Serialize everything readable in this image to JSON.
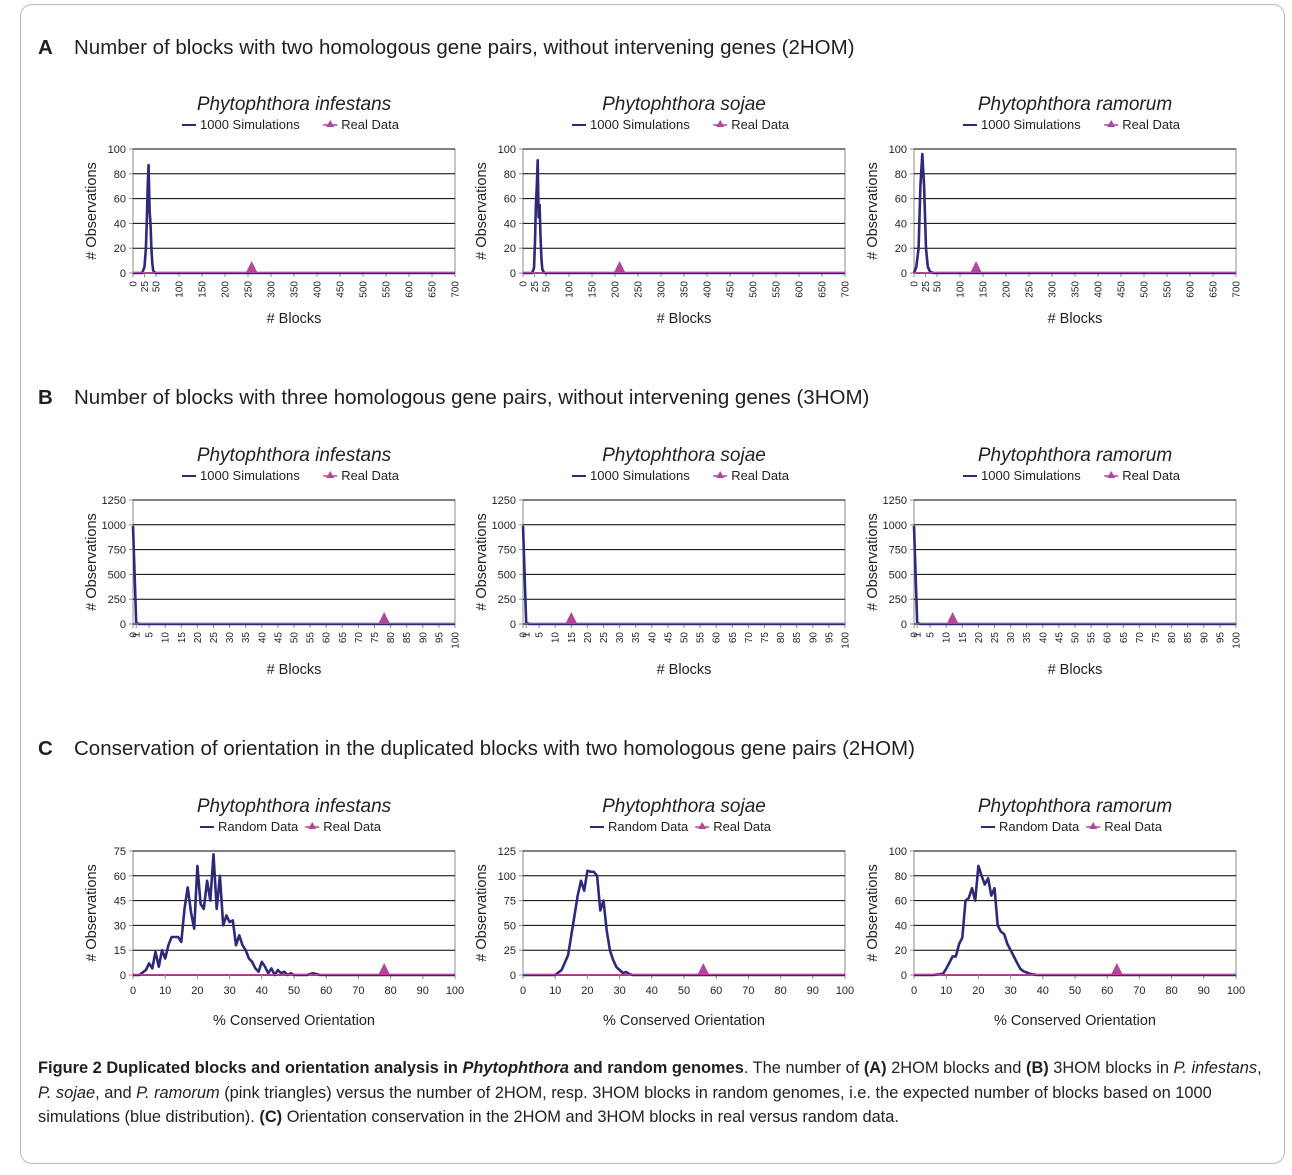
{
  "sections": [
    {
      "letter": "A",
      "text": "Number of blocks with two homologous gene pairs, without intervening genes (2HOM)"
    },
    {
      "letter": "B",
      "text": "Number of blocks with three homologous gene pairs, without intervening genes (3HOM)"
    },
    {
      "letter": "C",
      "text": "Conservation of orientation in the duplicated blocks with two homologous gene pairs (2HOM)"
    }
  ],
  "colors": {
    "series": "#2e2a7a",
    "real": "#b0479a",
    "grid": "#000000",
    "axis": "#8c8c8c"
  },
  "chart_data": [
    {
      "id": "A1",
      "type": "line",
      "title": "Phytophthora infestans",
      "legend": [
        "1000 Simulations",
        "Real Data"
      ],
      "xlabel": "# Blocks",
      "ylabel": "# Observations",
      "xlim": [
        0,
        700
      ],
      "ylim": [
        0,
        100
      ],
      "yticks": [
        0,
        20,
        40,
        60,
        80,
        100
      ],
      "xticks": [
        0,
        25,
        50,
        100,
        150,
        200,
        250,
        300,
        350,
        400,
        450,
        500,
        550,
        600,
        650,
        700
      ],
      "xtick_rotate": true,
      "series": {
        "x": [
          0,
          20,
          25,
          28,
          30,
          32,
          34,
          36,
          38,
          40,
          42,
          44,
          48,
          55,
          700
        ],
        "y": [
          0,
          0,
          5,
          20,
          42,
          70,
          87,
          50,
          40,
          20,
          8,
          2,
          0,
          0,
          0
        ]
      },
      "real": {
        "x": 258,
        "y": 6
      }
    },
    {
      "id": "A2",
      "type": "line",
      "title": "Phytophthora sojae",
      "legend": [
        "1000 Simulations",
        "Real Data"
      ],
      "xlabel": "# Blocks",
      "ylabel": "# Observations",
      "xlim": [
        0,
        700
      ],
      "ylim": [
        0,
        100
      ],
      "yticks": [
        0,
        20,
        40,
        60,
        80,
        100
      ],
      "xticks": [
        0,
        25,
        50,
        100,
        150,
        200,
        250,
        300,
        350,
        400,
        450,
        500,
        550,
        600,
        650,
        700
      ],
      "xtick_rotate": true,
      "series": {
        "x": [
          0,
          20,
          24,
          26,
          28,
          30,
          32,
          34,
          36,
          38,
          40,
          42,
          46,
          55,
          700
        ],
        "y": [
          0,
          0,
          4,
          25,
          55,
          70,
          91,
          45,
          55,
          30,
          12,
          3,
          0,
          0,
          0
        ]
      },
      "real": {
        "x": 210,
        "y": 6
      }
    },
    {
      "id": "A3",
      "type": "line",
      "title": "Phytophthora ramorum",
      "legend": [
        "1000 Simulations",
        "Real Data"
      ],
      "xlabel": "# Blocks",
      "ylabel": "# Observations",
      "xlim": [
        0,
        700
      ],
      "ylim": [
        0,
        100
      ],
      "yticks": [
        0,
        20,
        40,
        60,
        80,
        100
      ],
      "xticks": [
        0,
        25,
        50,
        100,
        150,
        200,
        250,
        300,
        350,
        400,
        450,
        500,
        550,
        600,
        650,
        700
      ],
      "xtick_rotate": true,
      "series": {
        "x": [
          0,
          5,
          10,
          14,
          18,
          22,
          26,
          30,
          35,
          42,
          700
        ],
        "y": [
          0,
          5,
          20,
          70,
          96,
          70,
          20,
          5,
          1,
          0,
          0
        ]
      },
      "real": {
        "x": 135,
        "y": 6
      }
    },
    {
      "id": "B1",
      "type": "line",
      "title": "Phytophthora infestans",
      "legend": [
        "1000 Simulations",
        "Real Data"
      ],
      "xlabel": "# Blocks",
      "ylabel": "# Observations",
      "xlim": [
        0,
        100
      ],
      "ylim": [
        0,
        1250
      ],
      "yticks": [
        0,
        250,
        500,
        750,
        1000,
        1250
      ],
      "xticks": [
        0,
        1,
        5,
        10,
        15,
        20,
        25,
        30,
        35,
        40,
        45,
        50,
        55,
        60,
        65,
        70,
        75,
        80,
        85,
        90,
        95,
        100
      ],
      "xtick_rotate": true,
      "series": {
        "x": [
          0,
          1,
          2,
          100
        ],
        "y": [
          990,
          10,
          0,
          0
        ]
      },
      "real": {
        "x": 78,
        "y": 80
      }
    },
    {
      "id": "B2",
      "type": "line",
      "title": "Phytophthora sojae",
      "legend": [
        "1000 Simulations",
        "Real Data"
      ],
      "xlabel": "# Blocks",
      "ylabel": "# Observations",
      "xlim": [
        0,
        100
      ],
      "ylim": [
        0,
        1250
      ],
      "yticks": [
        0,
        250,
        500,
        750,
        1000,
        1250
      ],
      "xticks": [
        0,
        1,
        5,
        10,
        15,
        20,
        25,
        30,
        35,
        40,
        45,
        50,
        55,
        60,
        65,
        70,
        75,
        80,
        85,
        90,
        95,
        100
      ],
      "xtick_rotate": true,
      "series": {
        "x": [
          0,
          1,
          2,
          100
        ],
        "y": [
          990,
          10,
          0,
          0
        ]
      },
      "real": {
        "x": 15,
        "y": 80
      }
    },
    {
      "id": "B3",
      "type": "line",
      "title": "Phytophthora ramorum",
      "legend": [
        "1000 Simulations",
        "Real Data"
      ],
      "xlabel": "# Blocks",
      "ylabel": "# Observations",
      "xlim": [
        0,
        100
      ],
      "ylim": [
        0,
        1250
      ],
      "yticks": [
        0,
        250,
        500,
        750,
        1000,
        1250
      ],
      "xticks": [
        0,
        1,
        5,
        10,
        15,
        20,
        25,
        30,
        35,
        40,
        45,
        50,
        55,
        60,
        65,
        70,
        75,
        80,
        85,
        90,
        95,
        100
      ],
      "xtick_rotate": true,
      "series": {
        "x": [
          0,
          1,
          2,
          100
        ],
        "y": [
          990,
          10,
          0,
          0
        ]
      },
      "real": {
        "x": 12,
        "y": 80
      }
    },
    {
      "id": "C1",
      "type": "line",
      "title": "Phytophthora infestans",
      "legend": [
        "Random Data",
        "Real Data"
      ],
      "xlabel": "% Conserved Orientation",
      "ylabel": "# Observations",
      "xlim": [
        0,
        100
      ],
      "ylim": [
        0,
        75
      ],
      "yticks": [
        0,
        15,
        30,
        45,
        60,
        75
      ],
      "xticks": [
        0,
        10,
        20,
        30,
        40,
        50,
        60,
        70,
        80,
        90,
        100
      ],
      "xtick_rotate": false,
      "series": {
        "x": [
          0,
          2,
          4,
          5,
          6,
          7,
          8,
          9,
          10,
          11,
          12,
          13,
          14,
          15,
          16,
          17,
          18,
          19,
          20,
          21,
          22,
          23,
          24,
          25,
          26,
          27,
          28,
          29,
          30,
          31,
          32,
          33,
          34,
          35,
          36,
          37,
          38,
          39,
          40,
          41,
          42,
          43,
          44,
          45,
          46,
          47,
          48,
          49,
          50,
          52,
          54,
          56,
          58,
          60,
          100
        ],
        "y": [
          0,
          0,
          3,
          7,
          4,
          14,
          5,
          15,
          10,
          18,
          23,
          23,
          23,
          20,
          40,
          53,
          38,
          28,
          66,
          43,
          40,
          57,
          45,
          73,
          40,
          60,
          30,
          36,
          32,
          33,
          18,
          24,
          18,
          15,
          10,
          8,
          4,
          2,
          8,
          5,
          1,
          4,
          0,
          3,
          1,
          2,
          0,
          1,
          0,
          0,
          0,
          1,
          0,
          0,
          0
        ]
      },
      "real": {
        "x": 78,
        "y": 5
      }
    },
    {
      "id": "C2",
      "type": "line",
      "title": "Phytophthora sojae",
      "legend": [
        "Random Data",
        "Real Data"
      ],
      "xlabel": "% Conserved Orientation",
      "ylabel": "# Observations",
      "xlim": [
        0,
        100
      ],
      "ylim": [
        0,
        125
      ],
      "yticks": [
        0,
        25,
        50,
        75,
        100,
        125
      ],
      "xticks": [
        0,
        10,
        20,
        30,
        40,
        50,
        60,
        70,
        80,
        90,
        100
      ],
      "xtick_rotate": false,
      "series": {
        "x": [
          0,
          10,
          12,
          14,
          15,
          16,
          17,
          18,
          19,
          20,
          21,
          22,
          23,
          24,
          25,
          26,
          27,
          28,
          29,
          30,
          31,
          32,
          33,
          34,
          36,
          100
        ],
        "y": [
          0,
          0,
          5,
          20,
          40,
          60,
          80,
          95,
          85,
          105,
          104,
          104,
          100,
          65,
          75,
          45,
          25,
          15,
          8,
          5,
          2,
          3,
          1,
          0,
          0,
          0
        ]
      },
      "real": {
        "x": 56,
        "y": 6
      }
    },
    {
      "id": "C3",
      "type": "line",
      "title": "Phytophthora ramorum",
      "legend": [
        "Random Data",
        "Real Data"
      ],
      "xlabel": "% Conserved Orientation",
      "ylabel": "# Observations",
      "xlim": [
        0,
        100
      ],
      "ylim": [
        0,
        100
      ],
      "yticks": [
        0,
        20,
        40,
        60,
        80,
        100
      ],
      "xticks": [
        0,
        10,
        20,
        30,
        40,
        50,
        60,
        70,
        80,
        90,
        100
      ],
      "xtick_rotate": false,
      "series": {
        "x": [
          0,
          6,
          9,
          10,
          11,
          12,
          13,
          14,
          15,
          16,
          17,
          18,
          19,
          20,
          21,
          22,
          23,
          24,
          25,
          26,
          27,
          28,
          29,
          30,
          31,
          32,
          33,
          34,
          35,
          36,
          38,
          100
        ],
        "y": [
          0,
          0,
          1,
          5,
          10,
          15,
          15,
          25,
          30,
          60,
          62,
          70,
          60,
          88,
          80,
          73,
          78,
          64,
          70,
          40,
          35,
          33,
          25,
          20,
          15,
          10,
          5,
          3,
          2,
          1,
          0,
          0
        ]
      },
      "real": {
        "x": 63,
        "y": 6
      }
    }
  ],
  "caption": {
    "label": "Figure 2",
    "title": "Duplicated blocks and orientation analysis in ",
    "title_italic": "Phytophthora",
    "title_end": " and random genomes",
    "t1": ". The number of ",
    "b1": "(A)",
    "t2": " 2HOM blocks and ",
    "b2": "(B)",
    "t3": " 3HOM blocks in ",
    "i1": "P. infestans",
    "t4": ", ",
    "i2": "P. sojae",
    "t5": ", and ",
    "i3": "P. ramorum",
    "t6": " (pink triangles) versus the number of 2HOM, resp. 3HOM blocks in random genomes, i.e. the expected number of blocks based on 1000 simulations (blue distribution). ",
    "b3": "(C)",
    "t7": " Orientation conservation in the 2HOM and 3HOM blocks in real versus random data."
  }
}
